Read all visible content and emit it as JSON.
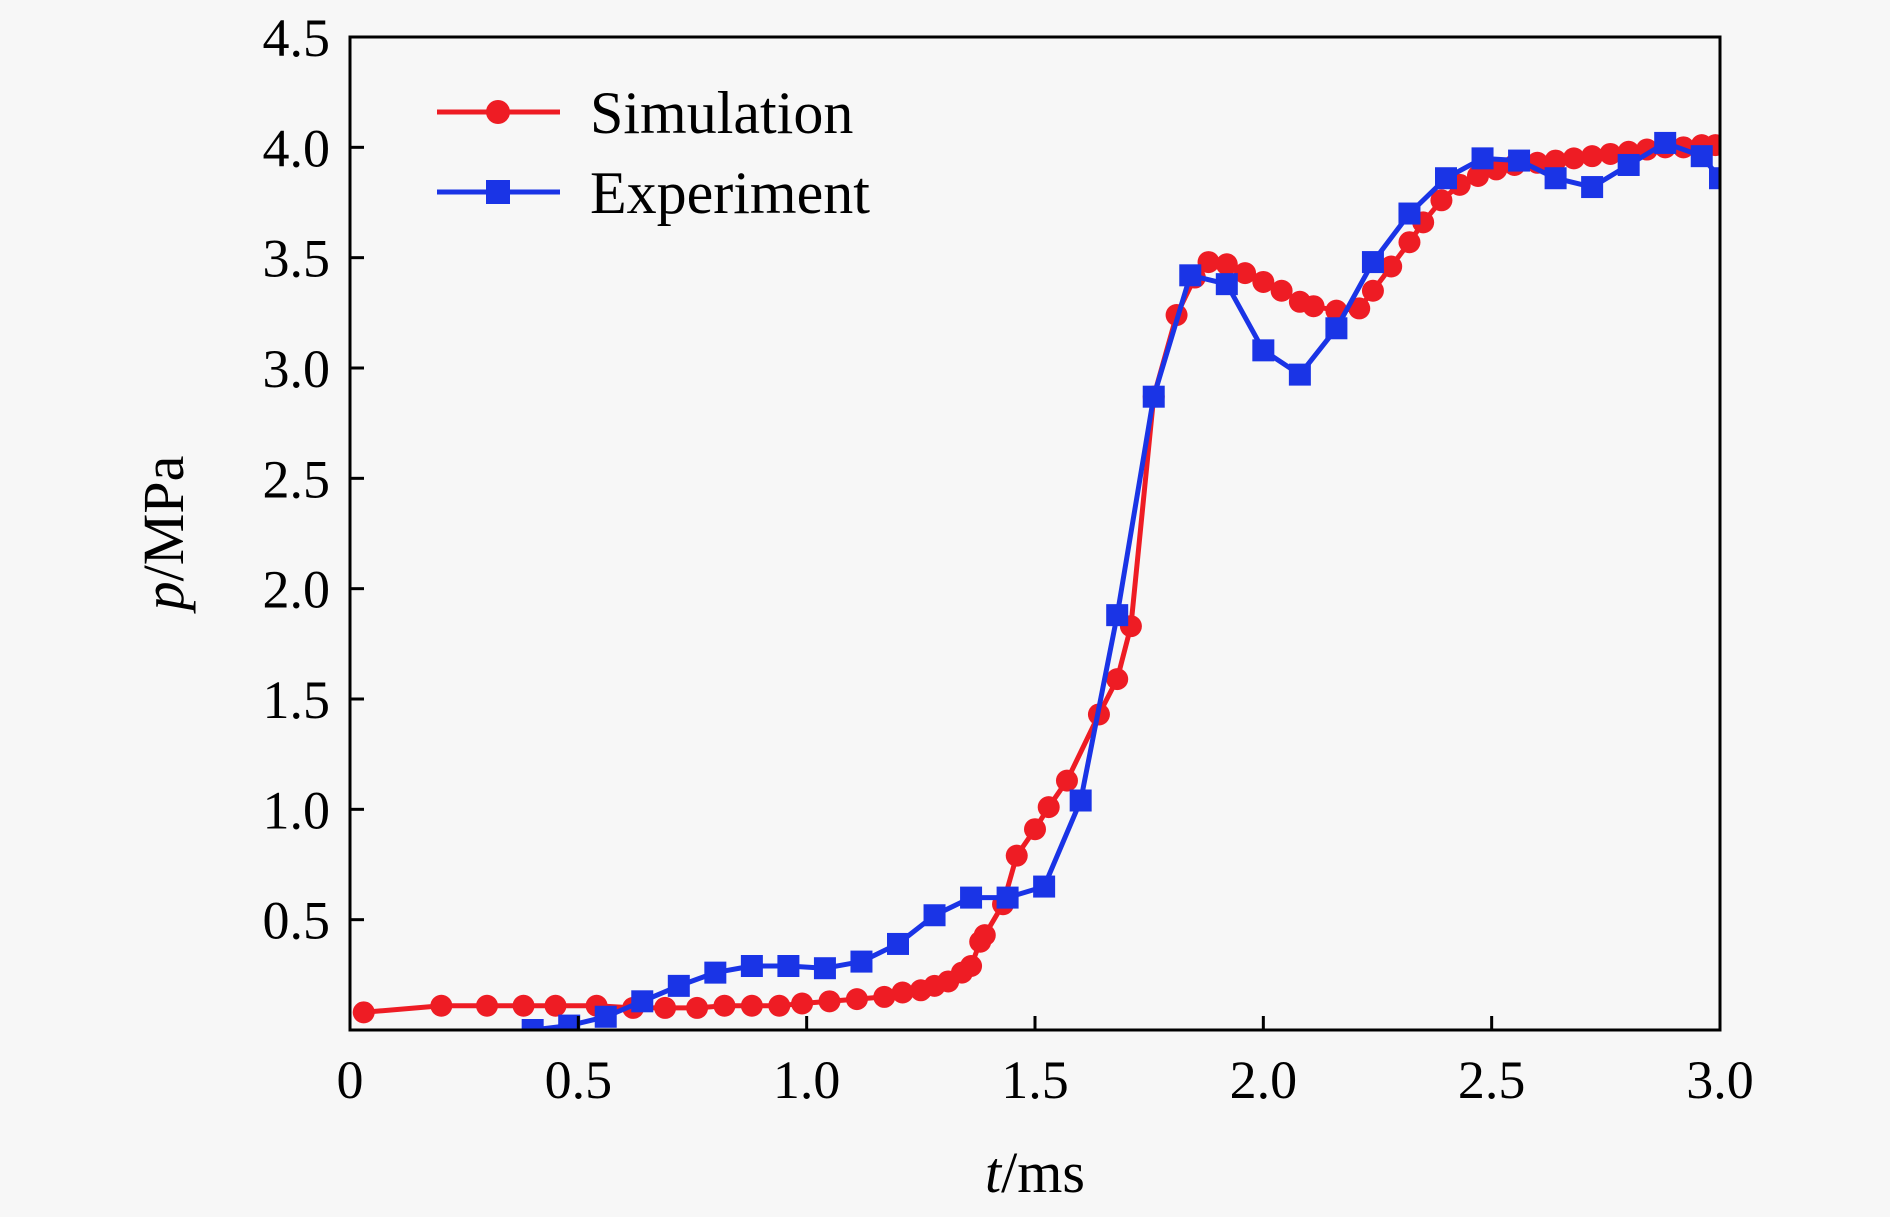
{
  "chart_data": {
    "type": "line",
    "title": "",
    "xlabel_var": "t",
    "xlabel_unit": "/ms",
    "ylabel_var": "p",
    "ylabel_unit": "/MPa",
    "xlim": [
      0,
      3.0
    ],
    "ylim": [
      0,
      4.5
    ],
    "x_ticks": [
      0,
      0.5,
      1.0,
      1.5,
      2.0,
      2.5,
      3.0
    ],
    "x_tick_labels": [
      "0",
      "0.5",
      "1.0",
      "1.5",
      "2.0",
      "2.5",
      "3.0"
    ],
    "y_ticks": [
      0.5,
      1.0,
      1.5,
      2.0,
      2.5,
      3.0,
      3.5,
      4.0,
      4.5
    ],
    "y_tick_labels": [
      "0.5",
      "1.0",
      "1.5",
      "2.0",
      "2.5",
      "3.0",
      "3.5",
      "4.0",
      "4.5"
    ],
    "grid": false,
    "legend_position": "top-left",
    "series": [
      {
        "name": "Simulation",
        "color": "#ee1c24",
        "marker": "circle",
        "x": [
          0.03,
          0.2,
          0.3,
          0.38,
          0.45,
          0.54,
          0.62,
          0.69,
          0.76,
          0.82,
          0.88,
          0.94,
          0.99,
          1.05,
          1.11,
          1.17,
          1.21,
          1.25,
          1.28,
          1.31,
          1.34,
          1.36,
          1.38,
          1.39,
          1.43,
          1.46,
          1.5,
          1.53,
          1.57,
          1.64,
          1.68,
          1.71,
          1.76,
          1.81,
          1.85,
          1.88,
          1.92,
          1.96,
          2.0,
          2.04,
          2.08,
          2.11,
          2.16,
          2.21,
          2.24,
          2.28,
          2.32,
          2.35,
          2.39,
          2.43,
          2.47,
          2.51,
          2.55,
          2.6,
          2.64,
          2.68,
          2.72,
          2.76,
          2.8,
          2.84,
          2.88,
          2.92,
          2.96,
          2.99
        ],
        "y": [
          0.08,
          0.11,
          0.11,
          0.11,
          0.11,
          0.11,
          0.1,
          0.1,
          0.1,
          0.11,
          0.11,
          0.11,
          0.12,
          0.13,
          0.14,
          0.15,
          0.17,
          0.18,
          0.2,
          0.22,
          0.26,
          0.29,
          0.4,
          0.43,
          0.57,
          0.79,
          0.91,
          1.01,
          1.13,
          1.43,
          1.59,
          1.83,
          2.87,
          3.24,
          3.41,
          3.48,
          3.47,
          3.43,
          3.39,
          3.35,
          3.3,
          3.28,
          3.26,
          3.27,
          3.35,
          3.46,
          3.57,
          3.66,
          3.76,
          3.83,
          3.87,
          3.9,
          3.92,
          3.93,
          3.94,
          3.95,
          3.96,
          3.97,
          3.98,
          3.99,
          4.0,
          4.0,
          4.01,
          4.01
        ]
      },
      {
        "name": "Experiment",
        "color": "#1a34e6",
        "marker": "square",
        "x": [
          0.4,
          0.48,
          0.56,
          0.64,
          0.72,
          0.8,
          0.88,
          0.96,
          1.04,
          1.12,
          1.2,
          1.28,
          1.36,
          1.44,
          1.52,
          1.6,
          1.68,
          1.76,
          1.84,
          1.92,
          2.0,
          2.08,
          2.16,
          2.24,
          2.32,
          2.4,
          2.48,
          2.56,
          2.64,
          2.72,
          2.8,
          2.88,
          2.96,
          3.0
        ],
        "y": [
          0.0,
          0.02,
          0.06,
          0.13,
          0.2,
          0.26,
          0.29,
          0.29,
          0.28,
          0.31,
          0.39,
          0.52,
          0.6,
          0.6,
          0.65,
          1.04,
          1.88,
          2.87,
          3.42,
          3.38,
          3.08,
          2.97,
          3.18,
          3.48,
          3.7,
          3.86,
          3.95,
          3.94,
          3.86,
          3.82,
          3.92,
          4.02,
          3.96,
          3.86
        ]
      }
    ]
  }
}
